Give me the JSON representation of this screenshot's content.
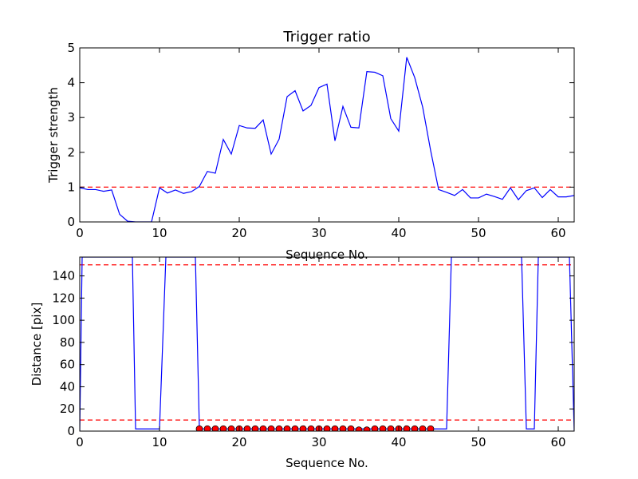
{
  "chart_data": [
    {
      "type": "line",
      "title": "Trigger ratio",
      "xlabel": "Sequence No.",
      "ylabel": "Trigger strength",
      "xlim": [
        0,
        62
      ],
      "ylim": [
        0,
        5
      ],
      "xticks": [
        0,
        10,
        20,
        30,
        40,
        50,
        60
      ],
      "yticks": [
        0,
        1,
        2,
        3,
        4,
        5
      ],
      "reference_lines": [
        1.0
      ],
      "series": [
        {
          "name": "Trigger strength",
          "color": "#0000ff",
          "x": [
            0,
            1,
            2,
            3,
            4,
            5,
            6,
            7,
            8,
            9,
            10,
            11,
            12,
            13,
            14,
            15,
            16,
            17,
            18,
            19,
            20,
            21,
            22,
            23,
            24,
            25,
            26,
            27,
            28,
            29,
            30,
            31,
            32,
            33,
            34,
            35,
            36,
            37,
            38,
            39,
            40,
            41,
            42,
            43,
            44,
            45,
            46,
            47,
            48,
            49,
            50,
            51,
            52,
            53,
            54,
            55,
            56,
            57,
            58,
            59,
            60,
            61,
            62
          ],
          "y": [
            0.98,
            0.93,
            0.93,
            0.88,
            0.92,
            0.22,
            0.02,
            0.0,
            0.0,
            0.0,
            0.98,
            0.83,
            0.92,
            0.82,
            0.87,
            1.02,
            1.45,
            1.4,
            2.37,
            1.95,
            2.77,
            2.7,
            2.69,
            2.93,
            1.95,
            2.38,
            3.6,
            3.77,
            3.19,
            3.35,
            3.86,
            3.96,
            2.33,
            3.32,
            2.72,
            2.7,
            4.32,
            4.3,
            4.2,
            2.97,
            2.61,
            4.73,
            4.15,
            3.3,
            2.05,
            0.93,
            0.85,
            0.76,
            0.93,
            0.69,
            0.69,
            0.8,
            0.73,
            0.65,
            0.98,
            0.64,
            0.9,
            0.98,
            0.7,
            0.93,
            0.72,
            0.72,
            0.76
          ]
        }
      ]
    },
    {
      "type": "line",
      "title": "",
      "xlabel": "Sequence No.",
      "ylabel": "Distance [pix]",
      "xlim": [
        0,
        62
      ],
      "ylim": [
        0,
        157
      ],
      "xticks": [
        0,
        10,
        20,
        30,
        40,
        50,
        60
      ],
      "yticks": [
        0,
        20,
        40,
        60,
        80,
        100,
        120,
        140
      ],
      "reference_lines": [
        10,
        150
      ],
      "series": [
        {
          "name": "Distance",
          "color": "#0000ff",
          "x": [
            0,
            0.3,
            6.6,
            7,
            10,
            10.8,
            14.5,
            15,
            46,
            46.6,
            55.4,
            56,
            57,
            57.5,
            61.4,
            62
          ],
          "y": [
            0,
            157,
            157,
            2,
            2,
            157,
            157,
            2,
            2,
            157,
            157,
            2,
            2,
            157,
            157,
            0
          ]
        },
        {
          "name": "Markers",
          "color": "#ff0000",
          "marker": "circle",
          "x": [
            15,
            16,
            17,
            18,
            19,
            20,
            21,
            22,
            23,
            24,
            25,
            26,
            27,
            28,
            29,
            30,
            31,
            32,
            33,
            34,
            35,
            36,
            37,
            38,
            39,
            40,
            41,
            42,
            43,
            44
          ],
          "y": [
            2,
            2,
            2,
            2,
            2,
            2,
            2,
            2,
            2,
            2,
            2,
            2,
            2,
            2,
            2,
            2,
            2,
            2,
            2,
            2,
            1,
            1,
            2,
            2,
            2,
            2,
            2,
            2,
            2,
            2
          ]
        }
      ]
    }
  ]
}
